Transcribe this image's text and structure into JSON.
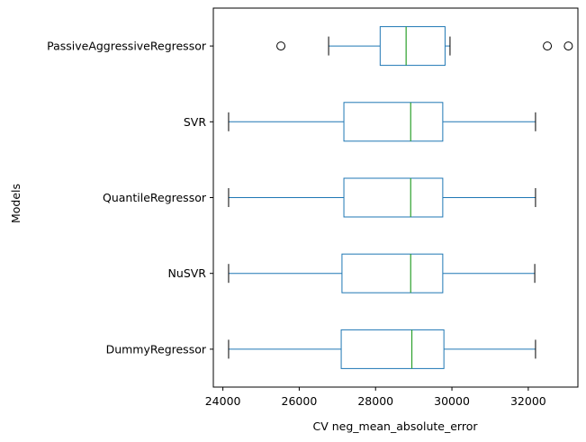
{
  "chart_data": {
    "type": "boxplot",
    "orientation": "horizontal",
    "xlabel": "CV neg_mean_absolute_error",
    "ylabel": "Models",
    "xlim": [
      23750,
      33300
    ],
    "xticks": [
      24000,
      26000,
      28000,
      30000,
      32000
    ],
    "grid": false,
    "legend": "none",
    "colors": {
      "box": "#1f77b4",
      "median": "#2ca02c",
      "whisker": "#1f77b4",
      "cap": "#000000",
      "flier": "#000000"
    },
    "categories": [
      "PassiveAggressiveRegressor",
      "SVR",
      "QuantileRegressor",
      "NuSVR",
      "DummyRegressor"
    ],
    "boxes": [
      {
        "name": "PassiveAggressiveRegressor",
        "whislo": 26770,
        "q1": 28120,
        "med": 28800,
        "q3": 29820,
        "whishi": 29950,
        "fliers": [
          25520,
          32500,
          33050
        ]
      },
      {
        "name": "SVR",
        "whislo": 24150,
        "q1": 27170,
        "med": 28920,
        "q3": 29760,
        "whishi": 32190,
        "fliers": []
      },
      {
        "name": "QuantileRegressor",
        "whislo": 24150,
        "q1": 27170,
        "med": 28920,
        "q3": 29760,
        "whishi": 32190,
        "fliers": []
      },
      {
        "name": "NuSVR",
        "whislo": 24150,
        "q1": 27120,
        "med": 28920,
        "q3": 29760,
        "whishi": 32170,
        "fliers": []
      },
      {
        "name": "DummyRegressor",
        "whislo": 24150,
        "q1": 27100,
        "med": 28950,
        "q3": 29790,
        "whishi": 32190,
        "fliers": []
      }
    ]
  }
}
